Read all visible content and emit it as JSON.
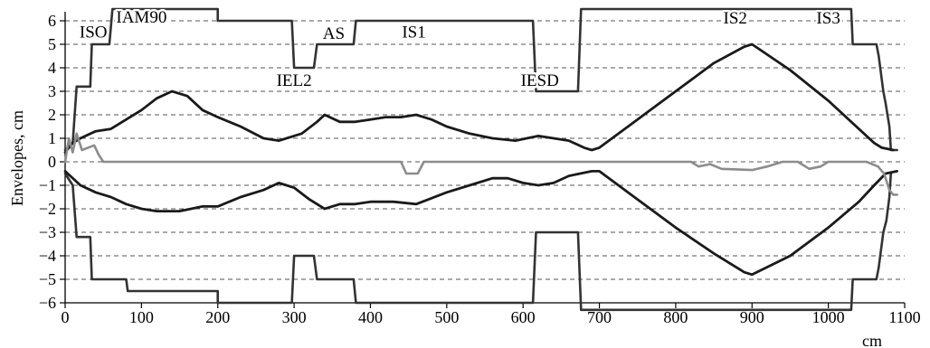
{
  "chart_data": {
    "type": "line",
    "title": "",
    "xlabel": "cm",
    "ylabel": "Envelopes, cm",
    "xlim": [
      0,
      1100
    ],
    "ylim": [
      -6,
      6
    ],
    "x_ticks": [
      0,
      100,
      200,
      300,
      400,
      500,
      600,
      700,
      800,
      900,
      1000,
      1100
    ],
    "y_ticks": [
      6,
      5,
      4,
      3,
      2,
      1,
      0,
      -1,
      -2,
      -3,
      -4,
      -5,
      -6
    ],
    "grid": "horizontal dashed",
    "colors": {
      "envelope": "#1a1a1a",
      "aperture": "#333333",
      "dispersion": "#8c8c8c",
      "grid": "#555555"
    },
    "series": [
      {
        "key": "aperture_upper",
        "points": [
          [
            0,
            0.5
          ],
          [
            10,
            0.8
          ],
          [
            15,
            3.2
          ],
          [
            33,
            3.2
          ],
          [
            35,
            5
          ],
          [
            40,
            5
          ],
          [
            58,
            5
          ],
          [
            62,
            6.5
          ],
          [
            200,
            6.5
          ],
          [
            200,
            6
          ],
          [
            297,
            6
          ],
          [
            300,
            4
          ],
          [
            326,
            4
          ],
          [
            330,
            5
          ],
          [
            378,
            5
          ],
          [
            381,
            6
          ],
          [
            613,
            6
          ],
          [
            617,
            3
          ],
          [
            672,
            3
          ],
          [
            676,
            6.5
          ],
          [
            1030,
            6.5
          ],
          [
            1032,
            5
          ],
          [
            1063,
            5
          ],
          [
            1066,
            4.5
          ],
          [
            1072,
            3
          ],
          [
            1075,
            2.5
          ],
          [
            1080,
            1.5
          ],
          [
            1082,
            0.5
          ],
          [
            1090,
            0.5
          ]
        ]
      },
      {
        "key": "aperture_lower",
        "points": [
          [
            0,
            -0.5
          ],
          [
            10,
            -1
          ],
          [
            15,
            -3.2
          ],
          [
            33,
            -3.2
          ],
          [
            35,
            -5
          ],
          [
            80,
            -5
          ],
          [
            82,
            -5.5
          ],
          [
            200,
            -5.5
          ],
          [
            200,
            -6
          ],
          [
            297,
            -6
          ],
          [
            300,
            -4
          ],
          [
            326,
            -4
          ],
          [
            330,
            -5
          ],
          [
            378,
            -5
          ],
          [
            381,
            -6
          ],
          [
            613,
            -6
          ],
          [
            617,
            -3
          ],
          [
            672,
            -3
          ],
          [
            676,
            -6.3
          ],
          [
            1030,
            -6.3
          ],
          [
            1032,
            -5
          ],
          [
            1063,
            -5
          ],
          [
            1066,
            -4.5
          ],
          [
            1072,
            -3
          ],
          [
            1076,
            -2.5
          ],
          [
            1080,
            -1.5
          ],
          [
            1082,
            -0.5
          ]
        ]
      },
      {
        "key": "envelope_upper",
        "points": [
          [
            0,
            0.4
          ],
          [
            10,
            0.8
          ],
          [
            20,
            1
          ],
          [
            40,
            1.3
          ],
          [
            60,
            1.4
          ],
          [
            80,
            1.8
          ],
          [
            100,
            2.2
          ],
          [
            120,
            2.7
          ],
          [
            140,
            3
          ],
          [
            160,
            2.8
          ],
          [
            180,
            2.2
          ],
          [
            200,
            1.9
          ],
          [
            230,
            1.5
          ],
          [
            260,
            1
          ],
          [
            280,
            0.9
          ],
          [
            310,
            1.2
          ],
          [
            330,
            1.7
          ],
          [
            340,
            2
          ],
          [
            360,
            1.7
          ],
          [
            380,
            1.7
          ],
          [
            400,
            1.8
          ],
          [
            420,
            1.9
          ],
          [
            440,
            1.9
          ],
          [
            460,
            2
          ],
          [
            480,
            1.8
          ],
          [
            500,
            1.5
          ],
          [
            530,
            1.2
          ],
          [
            560,
            1
          ],
          [
            590,
            0.9
          ],
          [
            620,
            1.1
          ],
          [
            640,
            1
          ],
          [
            660,
            0.9
          ],
          [
            680,
            0.6
          ],
          [
            690,
            0.5
          ],
          [
            700,
            0.6
          ],
          [
            750,
            1.8
          ],
          [
            800,
            3
          ],
          [
            850,
            4.2
          ],
          [
            890,
            4.9
          ],
          [
            900,
            5
          ],
          [
            950,
            3.9
          ],
          [
            1000,
            2.6
          ],
          [
            1040,
            1.4
          ],
          [
            1060,
            0.8
          ],
          [
            1070,
            0.6
          ],
          [
            1085,
            0.5
          ]
        ]
      },
      {
        "key": "envelope_lower",
        "points": [
          [
            0,
            -0.4
          ],
          [
            20,
            -1
          ],
          [
            40,
            -1.3
          ],
          [
            60,
            -1.5
          ],
          [
            80,
            -1.8
          ],
          [
            100,
            -2
          ],
          [
            120,
            -2.1
          ],
          [
            150,
            -2.1
          ],
          [
            180,
            -1.9
          ],
          [
            200,
            -1.9
          ],
          [
            230,
            -1.5
          ],
          [
            260,
            -1.2
          ],
          [
            280,
            -0.9
          ],
          [
            300,
            -1.1
          ],
          [
            320,
            -1.6
          ],
          [
            340,
            -2
          ],
          [
            360,
            -1.8
          ],
          [
            380,
            -1.8
          ],
          [
            400,
            -1.7
          ],
          [
            430,
            -1.7
          ],
          [
            460,
            -1.8
          ],
          [
            500,
            -1.3
          ],
          [
            530,
            -1
          ],
          [
            560,
            -0.7
          ],
          [
            580,
            -0.7
          ],
          [
            600,
            -0.9
          ],
          [
            620,
            -1
          ],
          [
            640,
            -0.9
          ],
          [
            660,
            -0.6
          ],
          [
            690,
            -0.4
          ],
          [
            700,
            -0.4
          ],
          [
            750,
            -1.6
          ],
          [
            800,
            -2.8
          ],
          [
            850,
            -3.9
          ],
          [
            890,
            -4.7
          ],
          [
            900,
            -4.8
          ],
          [
            950,
            -4
          ],
          [
            1000,
            -2.8
          ],
          [
            1040,
            -1.7
          ],
          [
            1060,
            -1
          ],
          [
            1075,
            -0.5
          ],
          [
            1090,
            -0.4
          ]
        ]
      },
      {
        "key": "dispersion",
        "points": [
          [
            0,
            0
          ],
          [
            5,
            1
          ],
          [
            10,
            0.4
          ],
          [
            15,
            1.2
          ],
          [
            22,
            0.5
          ],
          [
            30,
            0.6
          ],
          [
            38,
            0.7
          ],
          [
            44,
            0.3
          ],
          [
            50,
            0
          ],
          [
            440,
            0
          ],
          [
            447,
            -0.5
          ],
          [
            462,
            -0.5
          ],
          [
            470,
            0
          ],
          [
            820,
            0
          ],
          [
            830,
            -0.2
          ],
          [
            845,
            -0.1
          ],
          [
            860,
            -0.3
          ],
          [
            900,
            -0.35
          ],
          [
            920,
            -0.2
          ],
          [
            940,
            0
          ],
          [
            960,
            0
          ],
          [
            975,
            -0.3
          ],
          [
            990,
            -0.2
          ],
          [
            1000,
            0
          ],
          [
            1050,
            0
          ],
          [
            1065,
            -0.2
          ],
          [
            1073,
            -0.5
          ],
          [
            1080,
            -1.2
          ],
          [
            1085,
            -1.4
          ],
          [
            1090,
            -1.4
          ]
        ]
      }
    ],
    "annotations": [
      {
        "text": "ISO",
        "x": 37,
        "y": 5.55
      },
      {
        "text": "IAM90",
        "x": 100,
        "y": 6.2
      },
      {
        "text": "IEL2",
        "x": 300,
        "y": 3.5
      },
      {
        "text": "AS",
        "x": 352,
        "y": 5.5
      },
      {
        "text": "IS1",
        "x": 457,
        "y": 5.55
      },
      {
        "text": "IESD",
        "x": 622,
        "y": 3.5
      },
      {
        "text": "IS2",
        "x": 878,
        "y": 6.15
      },
      {
        "text": "IS3",
        "x": 1000,
        "y": 6.15
      }
    ]
  }
}
